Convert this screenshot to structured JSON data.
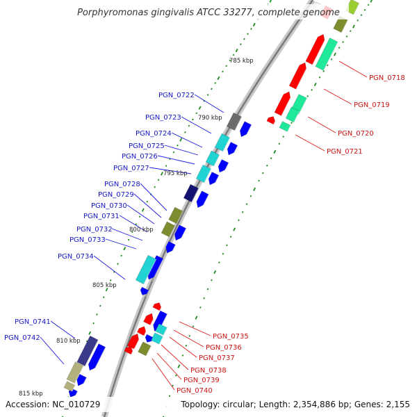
{
  "title": "Porphyromonas gingivalis ATCC 33277, complete genome",
  "footer": {
    "accession": "Accession: NC_010729",
    "stats": "Topology: circular; Length: 2,354,886 bp; Genes: 2,155"
  },
  "ticks": [
    {
      "label": "785 kbp",
      "pos": 785
    },
    {
      "label": "790 kbp",
      "pos": 790
    },
    {
      "label": "795 kbp",
      "pos": 795
    },
    {
      "label": "800 kbp",
      "pos": 800
    },
    {
      "label": "805 kbp",
      "pos": 805
    },
    {
      "label": "810 kbp",
      "pos": 810
    },
    {
      "label": "815 kbp",
      "pos": 815
    }
  ],
  "genes_left": [
    {
      "label": "PGN_0722",
      "color": "#0000ff"
    },
    {
      "label": "PGN_0723",
      "color": "#0000ff"
    },
    {
      "label": "PGN_0724",
      "color": "#0000ff"
    },
    {
      "label": "PGN_0725",
      "color": "#0000ff"
    },
    {
      "label": "PGN_0726",
      "color": "#0000ff"
    },
    {
      "label": "PGN_0727",
      "color": "#0000ff"
    },
    {
      "label": "PGN_0728",
      "color": "#0000ff"
    },
    {
      "label": "PGN_0729",
      "color": "#0000ff"
    },
    {
      "label": "PGN_0730",
      "color": "#0000ff"
    },
    {
      "label": "PGN_0731",
      "color": "#0000ff"
    },
    {
      "label": "PGN_0732",
      "color": "#0000ff"
    },
    {
      "label": "PGN_0733",
      "color": "#0000ff"
    },
    {
      "label": "PGN_0734",
      "color": "#0000ff"
    },
    {
      "label": "PGN_0741",
      "color": "#0000ff"
    },
    {
      "label": "PGN_0742",
      "color": "#0000ff"
    }
  ],
  "genes_right": [
    {
      "label": "PGN_0718",
      "color": "#ff0000"
    },
    {
      "label": "PGN_0719",
      "color": "#ff0000"
    },
    {
      "label": "PGN_0720",
      "color": "#ff0000"
    },
    {
      "label": "PGN_0721",
      "color": "#ff0000"
    },
    {
      "label": "PGN_0735",
      "color": "#ff0000"
    },
    {
      "label": "PGN_0736",
      "color": "#ff0000"
    },
    {
      "label": "PGN_0737",
      "color": "#ff0000"
    },
    {
      "label": "PGN_0738",
      "color": "#ff0000"
    },
    {
      "label": "PGN_0739",
      "color": "#ff0000"
    },
    {
      "label": "PGN_0740",
      "color": "#ff0000"
    }
  ],
  "colors": {
    "forward_cds": "#0000ff",
    "reverse_cds": "#ff0000",
    "cog_cyan": "#22d3d3",
    "cog_olive": "#7e8b2e",
    "cog_navy": "#121270",
    "cog_gray": "#6b6b6b",
    "cog_spring": "#1fe89a",
    "cog_khaki": "#b2b07c",
    "cog_slate": "#3b3a8a",
    "backbone": "#808080",
    "gc_ticks": "#1e8a1e"
  }
}
